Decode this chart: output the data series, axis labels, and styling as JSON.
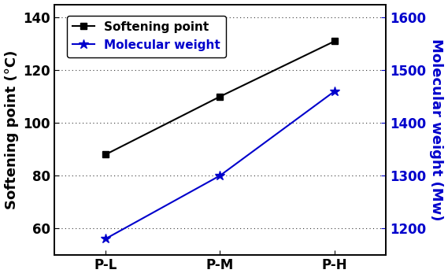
{
  "categories": [
    "P-L",
    "P-M",
    "P-H"
  ],
  "softening_point": [
    88,
    110,
    131
  ],
  "molecular_weight": [
    1180,
    1300,
    1460
  ],
  "sp_color": "black",
  "mw_color": "#0000cc",
  "sp_label": "Softening point",
  "mw_label": "Molecular weight",
  "ylabel_left": "Softening point (°C)",
  "ylabel_right": "Molecular weight (Mw)",
  "ylim_left": [
    50,
    145
  ],
  "ylim_right": [
    1150,
    1625
  ],
  "yticks_left": [
    60,
    80,
    100,
    120,
    140
  ],
  "yticks_right": [
    1200,
    1300,
    1400,
    1500,
    1600
  ],
  "background_color": "white",
  "label_fontsize": 13,
  "tick_fontsize": 12,
  "legend_fontsize": 11
}
